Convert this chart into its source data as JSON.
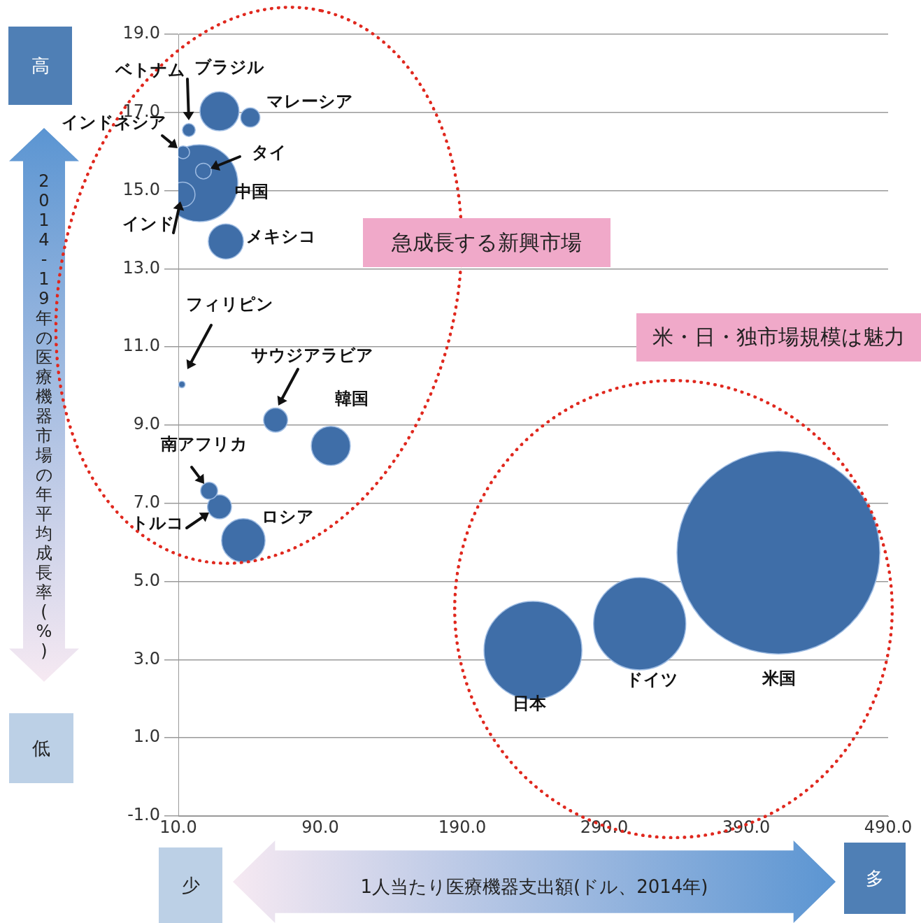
{
  "chart_data": {
    "type": "bubble",
    "xlabel": "1人当たり医療機器支出額(ドル、2014年)",
    "ylabel": "2014-19年の医療機器市場の年平均成長率(%)",
    "x": [
      -2.6,
      19,
      40.7,
      -6.6,
      7.7,
      4.8,
      -7,
      23.5,
      -7.5,
      58.5,
      97.4,
      11.7,
      19,
      35.8,
      239.8,
      315,
      412.7
    ],
    "values": [
      16.55,
      17.03,
      16.87,
      15.98,
      15.5,
      15.19,
      14.9,
      13.7,
      10.04,
      9.13,
      8.47,
      7.32,
      6.91,
      6.05,
      3.24,
      3.92,
      5.74
    ],
    "sizes": [
      0.004,
      0.037,
      0.009,
      0.004,
      0.006,
      0.144,
      0.015,
      0.03,
      0.001,
      0.014,
      0.037,
      0.007,
      0.014,
      0.046,
      0.233,
      0.207,
      1
    ],
    "color": "#3f6ea8",
    "xlim": [
      -10,
      490
    ],
    "xticks": [
      {
        "value": -10,
        "label": "10.0"
      },
      {
        "value": 90,
        "label": "90.0"
      },
      {
        "value": 190,
        "label": "190.0"
      },
      {
        "value": 290,
        "label": "290.0"
      },
      {
        "value": 390,
        "label": "390.0"
      },
      {
        "value": 490,
        "label": "490.0"
      }
    ],
    "ylim": [
      -1,
      19
    ],
    "yticks": [
      {
        "value": -1,
        "label": "-1.0"
      },
      {
        "value": 1,
        "label": "1.0"
      },
      {
        "value": 3,
        "label": "3.0"
      },
      {
        "value": 5,
        "label": "5.0"
      },
      {
        "value": 7,
        "label": "7.0"
      },
      {
        "value": 9,
        "label": "9.0"
      },
      {
        "value": 11,
        "label": "11.0"
      },
      {
        "value": 13,
        "label": "13.0"
      },
      {
        "value": 15,
        "label": "15.0"
      },
      {
        "value": 17,
        "label": "17.0"
      },
      {
        "value": 19,
        "label": "19.0"
      }
    ],
    "grid": "y",
    "legend": false,
    "annotations": [
      {
        "text": "ブラジル",
        "x": 19,
        "y": 17.03
      },
      {
        "text": "マレーシア",
        "x": 40.7,
        "y": 16.87
      },
      {
        "text": "インドネシア",
        "x": -6.6,
        "y": 15.98
      },
      {
        "text": "タイ",
        "x": 7.7,
        "y": 15.5
      },
      {
        "text": "中国",
        "x": 4.8,
        "y": 15.19
      },
      {
        "text": "インド",
        "x": -7,
        "y": 14.9
      },
      {
        "text": "メキシコ",
        "x": 23.5,
        "y": 13.7
      },
      {
        "text": "韓国",
        "x": 97.4,
        "y": 8.47
      },
      {
        "text": "南アフリカ",
        "x": 11.7,
        "y": 7.32
      },
      {
        "text": "トルコ",
        "x": 19,
        "y": 6.91
      },
      {
        "text": "ロシア",
        "x": 35.8,
        "y": 6.05
      },
      {
        "text": "日本",
        "x": 239.8,
        "y": 3.24
      },
      {
        "text": "ドイツ",
        "x": 315,
        "y": 3.92
      },
      "急成長する新興市場",
      "米・日・独市場規模は魅力",
      "高",
      "低",
      "少",
      "多",
      "ベトナム",
      "フィリピン",
      "サウジアラビア",
      "米国"
    ]
  }
}
